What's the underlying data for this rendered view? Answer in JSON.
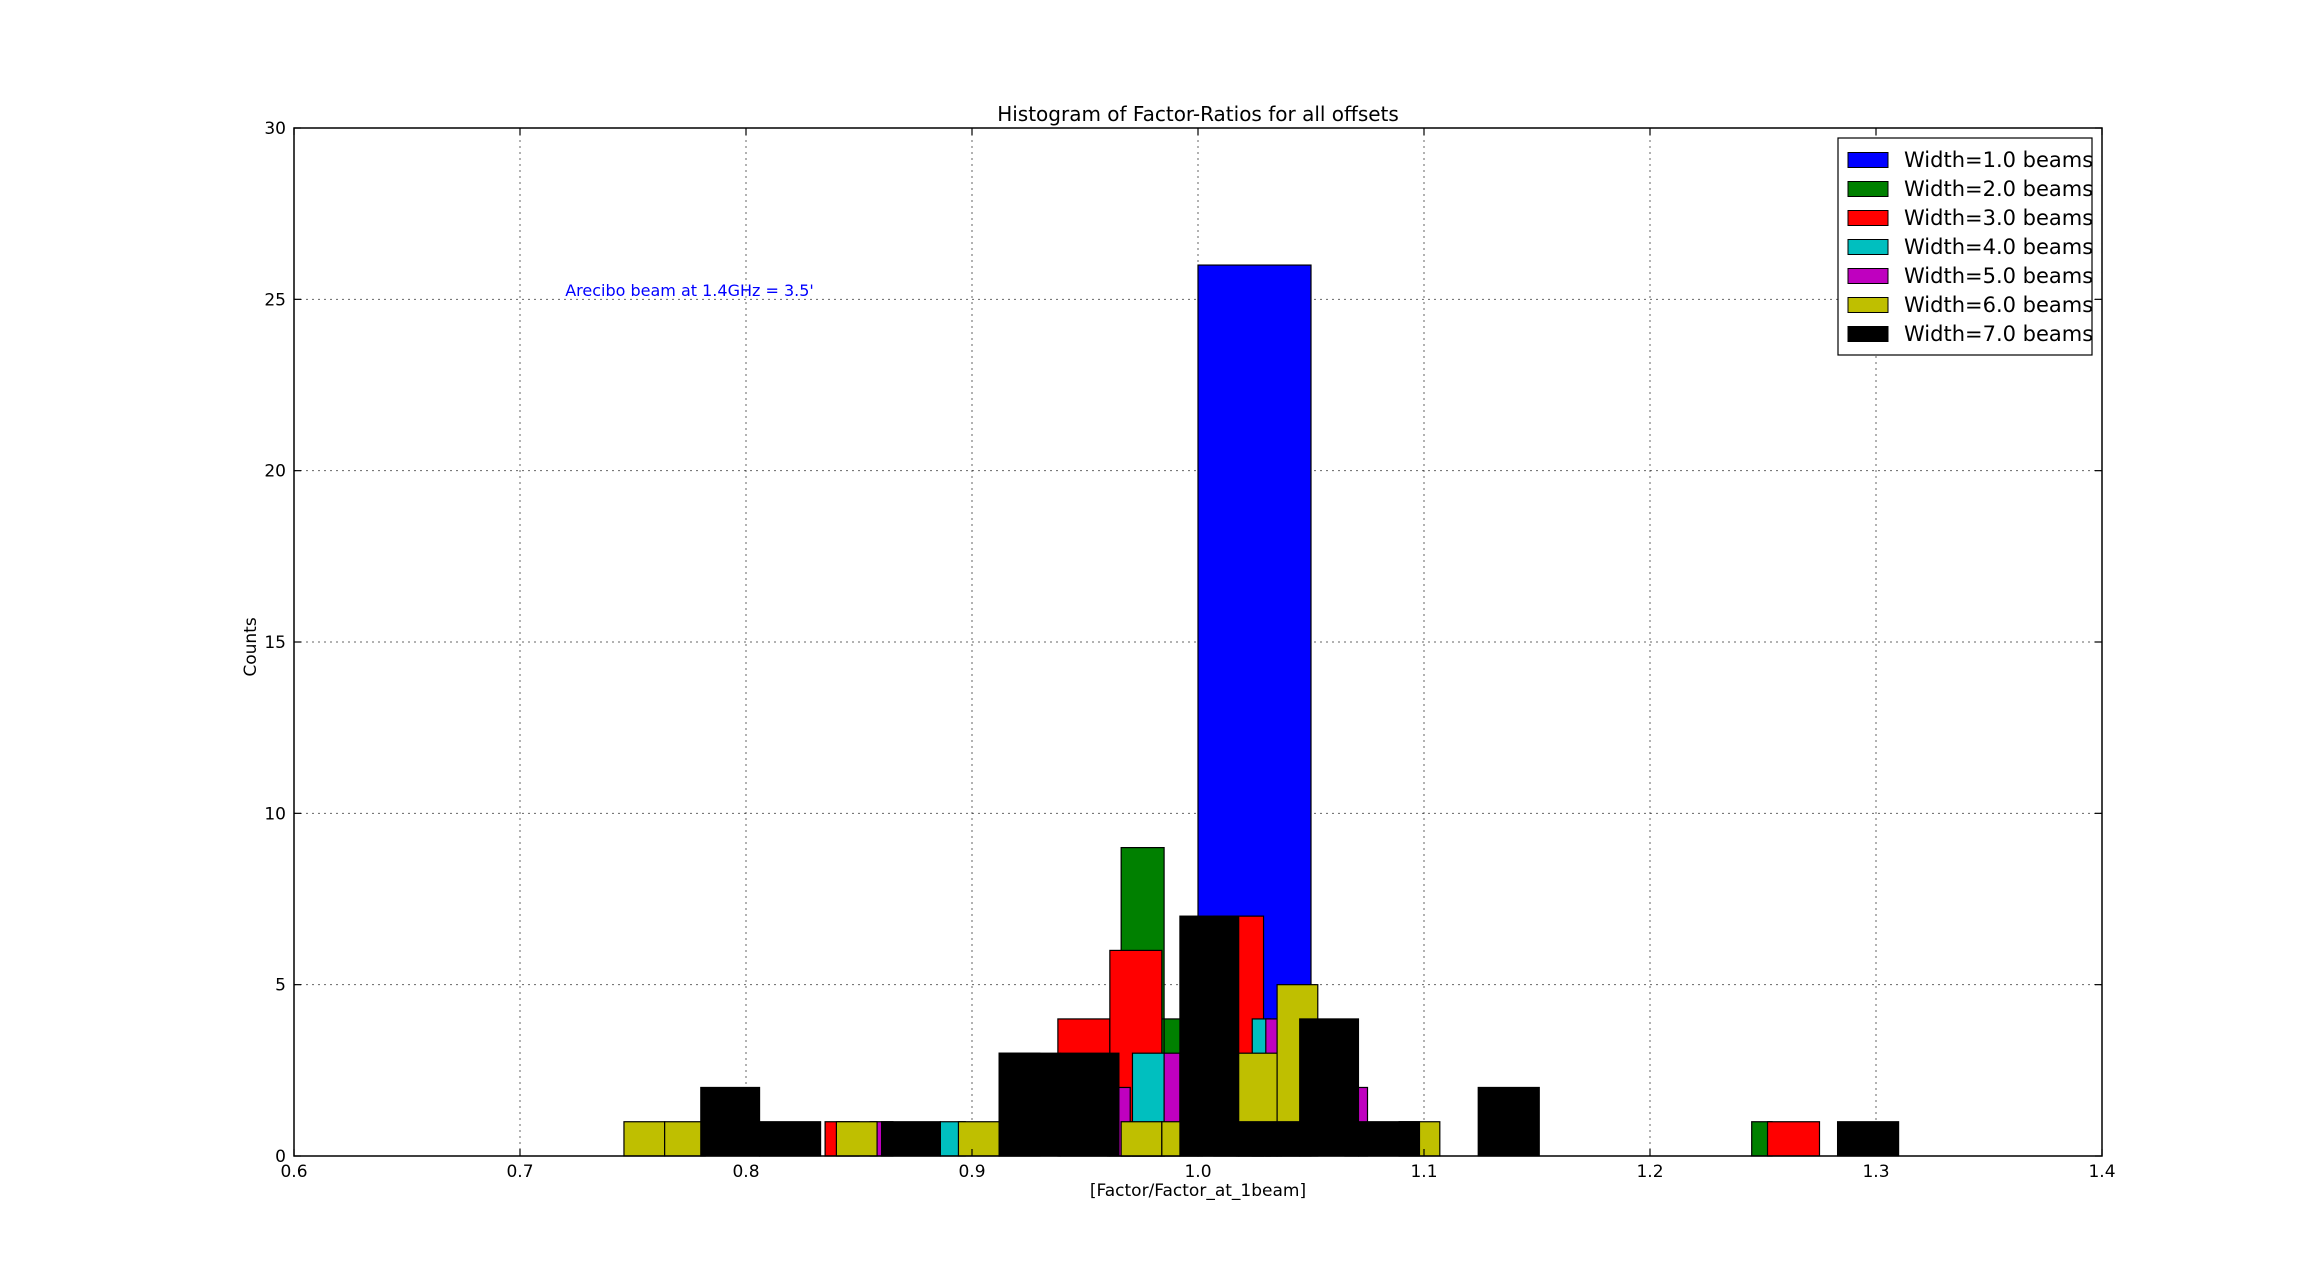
{
  "chart_data": {
    "type": "bar",
    "title": "Histogram of Factor-Ratios for all offsets",
    "xlabel": "[Factor/Factor_at_1beam]",
    "ylabel": "Counts",
    "xlim": [
      0.6,
      1.4
    ],
    "ylim": [
      0,
      30
    ],
    "xticks": [
      "0.6",
      "0.7",
      "0.8",
      "0.9",
      "1.0",
      "1.1",
      "1.2",
      "1.3",
      "1.4"
    ],
    "yticks": [
      "0",
      "5",
      "10",
      "15",
      "20",
      "25",
      "30"
    ],
    "grid": true,
    "legend_position": "top-right",
    "annotation": {
      "text": "Arecibo beam at 1.4GHz = 3.5'",
      "x": 0.72,
      "y": 25.1,
      "color": "#0000ff"
    },
    "series": [
      {
        "name": "Width=1.0 beams",
        "color": "#0000ff",
        "bars": [
          {
            "x0": 1.0,
            "x1": 1.05,
            "count": 26
          }
        ]
      },
      {
        "name": "Width=2.0 beams",
        "color": "#008000",
        "bars": [
          {
            "x0": 0.966,
            "x1": 0.985,
            "count": 9
          },
          {
            "x0": 0.966,
            "x1": 0.985,
            "count": 4
          },
          {
            "x0": 0.985,
            "x1": 1.0,
            "count": 4
          },
          {
            "x0": 1.245,
            "x1": 1.254,
            "count": 1
          }
        ]
      },
      {
        "name": "Width=3.0 beams",
        "color": "#ff0000",
        "bars": [
          {
            "x0": 0.835,
            "x1": 0.85,
            "count": 1
          },
          {
            "x0": 0.938,
            "x1": 0.961,
            "count": 4
          },
          {
            "x0": 0.961,
            "x1": 0.984,
            "count": 6
          },
          {
            "x0": 1.007,
            "x1": 1.029,
            "count": 7
          },
          {
            "x0": 1.252,
            "x1": 1.275,
            "count": 1
          }
        ]
      },
      {
        "name": "Width=4.0 beams",
        "color": "#00bfbf",
        "bars": [
          {
            "x0": 0.886,
            "x1": 0.897,
            "count": 1
          },
          {
            "x0": 0.971,
            "x1": 0.985,
            "count": 3
          },
          {
            "x0": 1.024,
            "x1": 1.032,
            "count": 4
          }
        ]
      },
      {
        "name": "Width=5.0 beams",
        "color": "#bf00bf",
        "bars": [
          {
            "x0": 0.855,
            "x1": 0.865,
            "count": 1
          },
          {
            "x0": 0.96,
            "x1": 0.97,
            "count": 2
          },
          {
            "x0": 0.985,
            "x1": 0.992,
            "count": 3
          },
          {
            "x0": 1.03,
            "x1": 1.037,
            "count": 4
          },
          {
            "x0": 1.065,
            "x1": 1.075,
            "count": 2
          }
        ]
      },
      {
        "name": "Width=6.0 beams",
        "color": "#bfbf00",
        "bars": [
          {
            "x0": 0.746,
            "x1": 0.764,
            "count": 1
          },
          {
            "x0": 0.764,
            "x1": 0.782,
            "count": 1
          },
          {
            "x0": 0.84,
            "x1": 0.858,
            "count": 1
          },
          {
            "x0": 0.894,
            "x1": 0.912,
            "count": 1
          },
          {
            "x0": 0.912,
            "x1": 0.93,
            "count": 3
          },
          {
            "x0": 0.966,
            "x1": 0.984,
            "count": 1
          },
          {
            "x0": 0.984,
            "x1": 1.002,
            "count": 1
          },
          {
            "x0": 1.017,
            "x1": 1.035,
            "count": 3
          },
          {
            "x0": 1.035,
            "x1": 1.053,
            "count": 5
          },
          {
            "x0": 1.089,
            "x1": 1.107,
            "count": 1
          }
        ]
      },
      {
        "name": "Width=7.0 beams",
        "color": "#000000",
        "bars": [
          {
            "x0": 0.78,
            "x1": 0.806,
            "count": 2
          },
          {
            "x0": 0.806,
            "x1": 0.833,
            "count": 1
          },
          {
            "x0": 0.86,
            "x1": 0.886,
            "count": 1
          },
          {
            "x0": 0.912,
            "x1": 0.939,
            "count": 3
          },
          {
            "x0": 0.939,
            "x1": 0.965,
            "count": 3
          },
          {
            "x0": 0.992,
            "x1": 1.018,
            "count": 7
          },
          {
            "x0": 1.018,
            "x1": 1.045,
            "count": 1
          },
          {
            "x0": 1.045,
            "x1": 1.071,
            "count": 4
          },
          {
            "x0": 1.071,
            "x1": 1.098,
            "count": 1
          },
          {
            "x0": 1.124,
            "x1": 1.151,
            "count": 2
          },
          {
            "x0": 1.283,
            "x1": 1.31,
            "count": 1
          }
        ]
      }
    ]
  }
}
